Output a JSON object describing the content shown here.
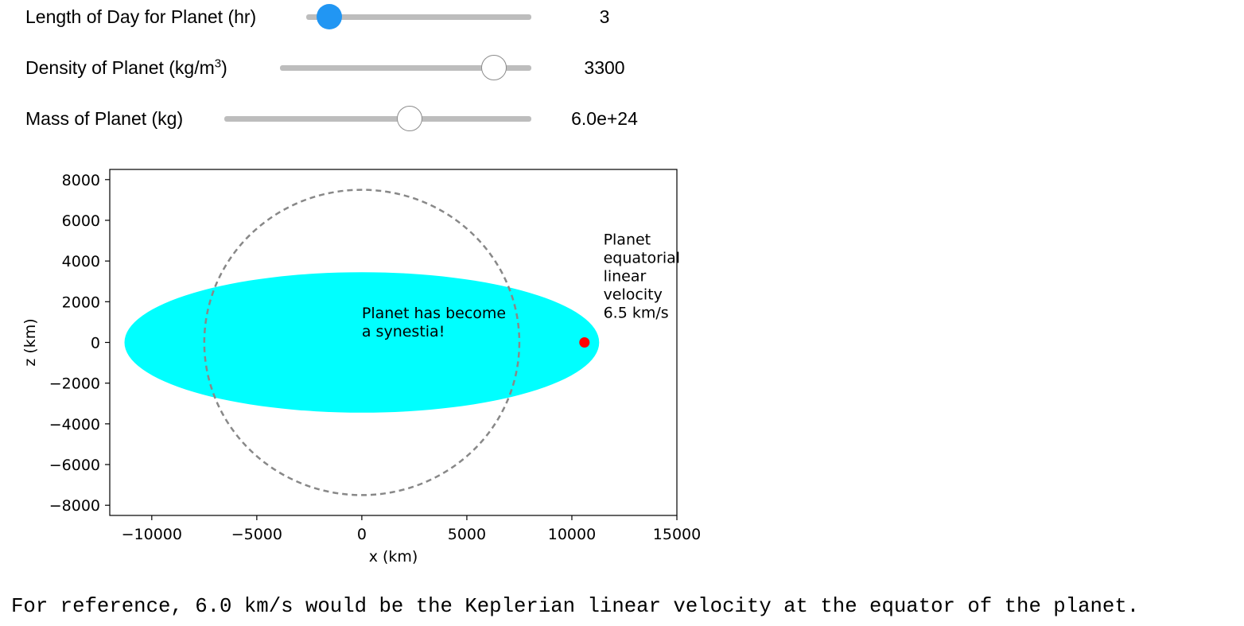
{
  "sliders": [
    {
      "label": "Length of Day for Planet (hr)",
      "value": "3",
      "fraction": 0.1
    },
    {
      "label_prefix": "Density of Planet (kg/m",
      "label_sup": "3",
      "label_suffix": ")",
      "value": "3300",
      "fraction": 0.85
    },
    {
      "label": "Mass of Planet (kg)",
      "value": "6.0e+24",
      "fraction": 0.6
    }
  ],
  "chart_data": {
    "type": "scatter",
    "xlabel": "x (km)",
    "ylabel": "z (km)",
    "xlim": [
      -12000,
      15000
    ],
    "ylim": [
      -8500,
      8500
    ],
    "xticks": [
      -10000,
      -5000,
      0,
      5000,
      10000,
      15000
    ],
    "yticks": [
      -8000,
      -6000,
      -4000,
      -2000,
      0,
      2000,
      4000,
      6000,
      8000
    ],
    "shapes": [
      {
        "name": "planet",
        "kind": "ellipse",
        "cx": 0,
        "cz": 0,
        "rx": 11300,
        "rz": 3450,
        "fill": "#00ffff"
      },
      {
        "name": "reference-circle",
        "kind": "circle",
        "cx": 0,
        "cz": 0,
        "r": 7500,
        "style": "dashed",
        "stroke": "#888888"
      }
    ],
    "points": [
      {
        "x": 10600,
        "z": 0,
        "color": "#ff0000"
      }
    ],
    "annotations": [
      {
        "lines": [
          "Planet has become",
          "a synestia!"
        ],
        "x": 0,
        "z": 1200
      },
      {
        "lines": [
          "Planet",
          "equatorial",
          "linear",
          "velocity",
          "6.5 km/s"
        ],
        "x": 11500,
        "z": 4800
      }
    ]
  },
  "footer": "For reference, 6.0 km/s would be the Keplerian linear velocity at the equator of the planet."
}
